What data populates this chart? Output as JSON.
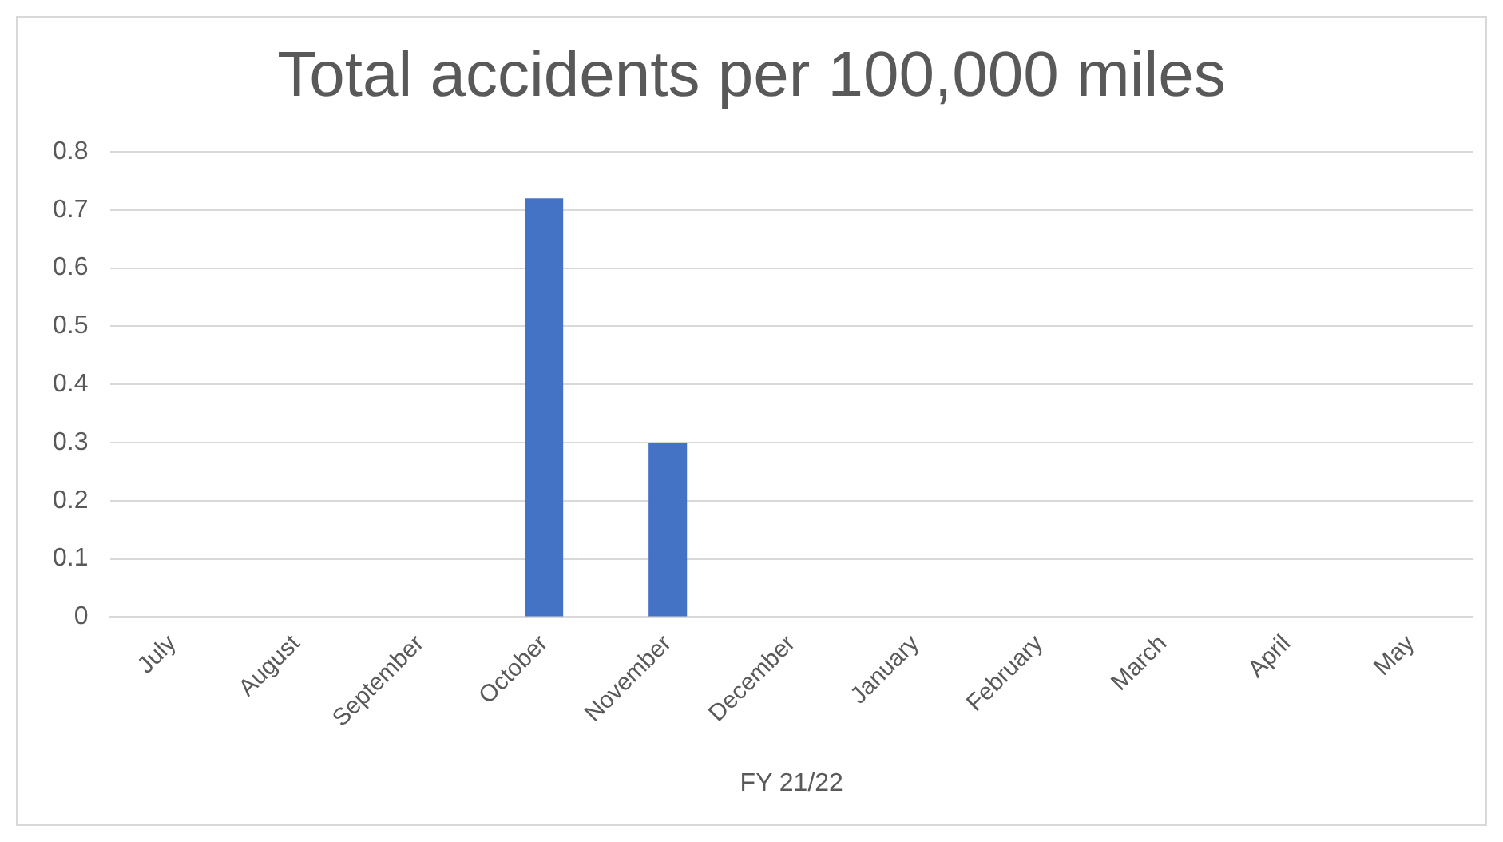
{
  "chart_data": {
    "type": "bar",
    "title": "Total accidents per 100,000 miles",
    "xlabel": "FY 21/22",
    "categories": [
      "July",
      "August",
      "September",
      "October",
      "November",
      "December",
      "January",
      "February",
      "March",
      "April",
      "May"
    ],
    "values": [
      0,
      0,
      0,
      0.72,
      0.3,
      0,
      0,
      0,
      0,
      0,
      0
    ],
    "color": "#4472c4",
    "ylim": [
      0,
      0.8
    ],
    "yticks": [
      0,
      0.1,
      0.2,
      0.3,
      0.4,
      0.5,
      0.6,
      0.7,
      0.8
    ],
    "grid": "y",
    "legend": false
  }
}
